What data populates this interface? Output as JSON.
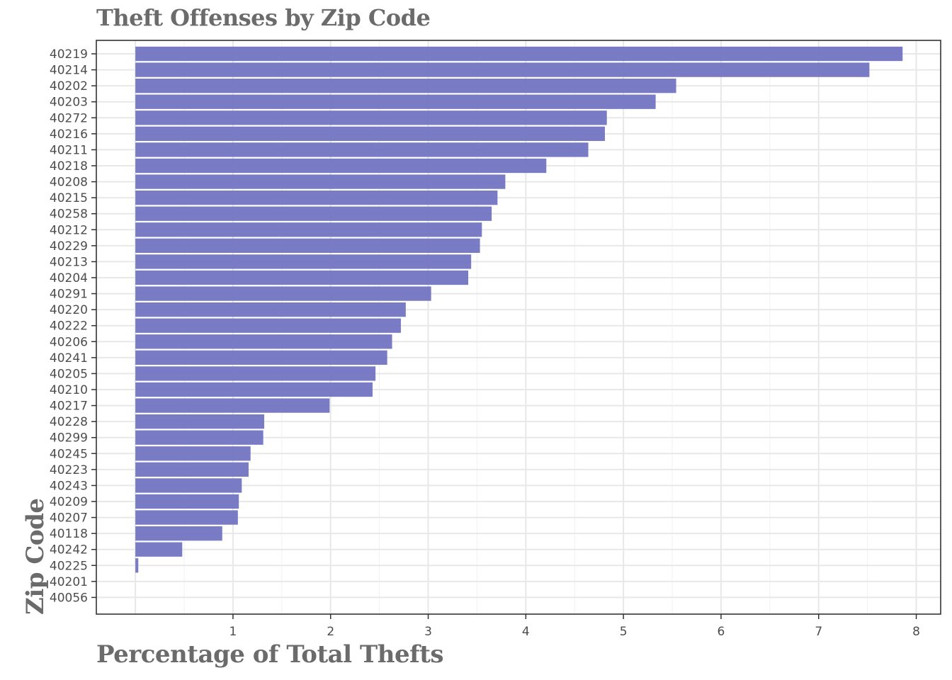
{
  "chart_data": {
    "type": "bar",
    "orientation": "horizontal",
    "title": "Theft Offenses by Zip Code",
    "xlabel": "Percentage of Total Thefts",
    "ylabel": "Zip Code",
    "xlim": [
      -0.4,
      8.25
    ],
    "xticks": [
      1,
      2,
      3,
      4,
      5,
      6,
      7,
      8
    ],
    "grid": true,
    "bar_color": "#7274c1",
    "categories": [
      "40219",
      "40214",
      "40202",
      "40203",
      "40272",
      "40216",
      "40211",
      "40218",
      "40208",
      "40215",
      "40258",
      "40212",
      "40229",
      "40213",
      "40204",
      "40291",
      "40220",
      "40222",
      "40206",
      "40241",
      "40205",
      "40210",
      "40217",
      "40228",
      "40299",
      "40245",
      "40223",
      "40243",
      "40209",
      "40207",
      "40118",
      "40242",
      "40225",
      "40201",
      "40056"
    ],
    "values": [
      7.86,
      7.52,
      5.54,
      5.33,
      4.83,
      4.81,
      4.64,
      4.21,
      3.79,
      3.71,
      3.65,
      3.55,
      3.53,
      3.44,
      3.41,
      3.03,
      2.77,
      2.72,
      2.63,
      2.58,
      2.46,
      2.43,
      1.99,
      1.32,
      1.31,
      1.18,
      1.16,
      1.09,
      1.06,
      1.05,
      0.89,
      0.48,
      0.03,
      0.0,
      0.0
    ]
  }
}
